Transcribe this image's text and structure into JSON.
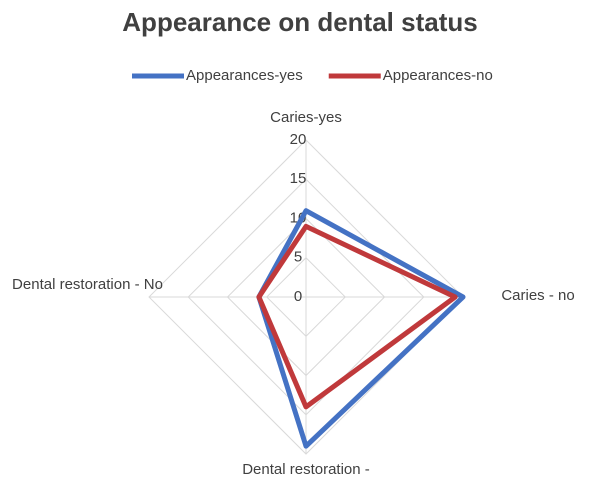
{
  "chart_data": {
    "type": "radar",
    "title": "Appearance on dental status",
    "categories": [
      "Caries-yes",
      "Caries - no",
      "Dental restoration -",
      "Dental restoration - No"
    ],
    "series": [
      {
        "name": "Appearances-yes",
        "color": "#4472c4",
        "values": [
          11,
          20,
          19,
          6
        ]
      },
      {
        "name": "Appearances-no",
        "color": "#c0393b",
        "values": [
          9,
          19,
          14,
          6
        ]
      }
    ],
    "ylim": [
      0,
      20
    ],
    "yticks": [
      0,
      5,
      10,
      15,
      20
    ],
    "grid": true,
    "legend": "top"
  }
}
